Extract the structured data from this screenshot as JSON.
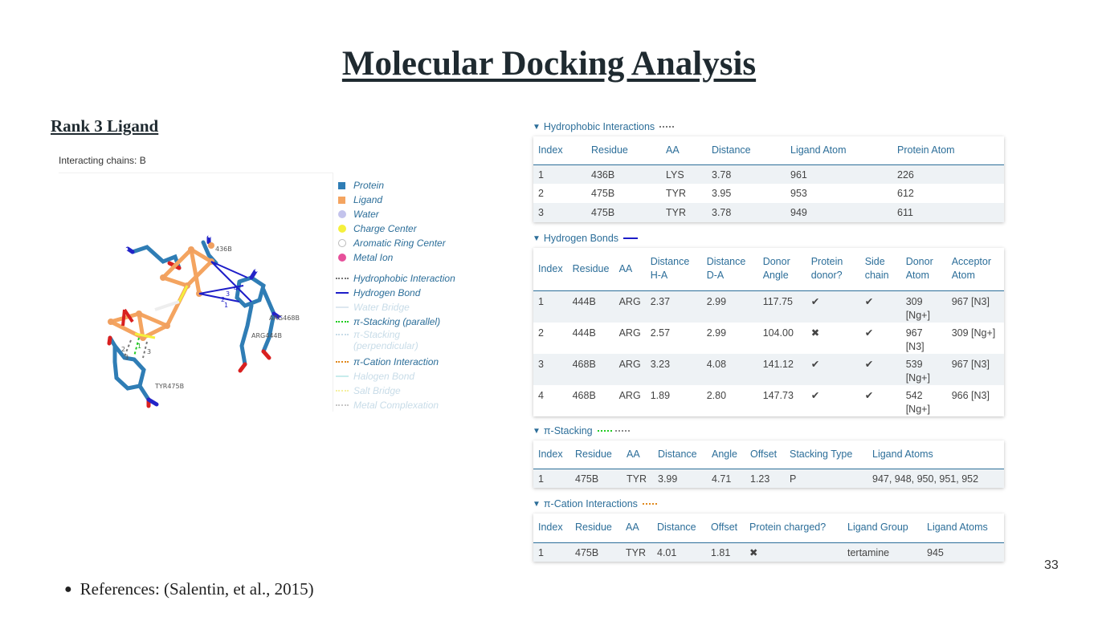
{
  "slide": {
    "title": "Molecular Docking Analysis",
    "rank_title": "Rank 3 Ligand",
    "chains_label": "Interacting chains: B",
    "page_number": "33",
    "references": "References: (Salentin, et al., 2015)"
  },
  "viewer": {
    "labels": [
      "436B",
      "ARG468B",
      "ARG444B",
      "TYR475B",
      "4",
      "3",
      "2",
      "1",
      "2",
      "3",
      "1",
      "3"
    ]
  },
  "legend": {
    "protein": "Protein",
    "ligand": "Ligand",
    "water": "Water",
    "charge_center": "Charge Center",
    "aromatic_ring_center": "Aromatic Ring Center",
    "metal_ion": "Metal Ion",
    "hydrophobic": "Hydrophobic Interaction",
    "hydrogen_bond": "Hydrogen Bond",
    "water_bridge": "Water Bridge",
    "pi_stacking_parallel": "π-Stacking (parallel)",
    "pi_stacking_perp_1": "π-Stacking",
    "pi_stacking_perp_2": "(perpendicular)",
    "pi_cation": "π-Cation Interaction",
    "halogen_bond": "Halogen Bond",
    "salt_bridge": "Salt Bridge",
    "metal_complexation": "Metal Complexation",
    "colors": {
      "protein": "#2f7db5",
      "ligand": "#f4a460",
      "water": "#c3c3ec",
      "charge_center": "#f5f03c",
      "metal_ion": "#e6509a",
      "hydrophobic": "#777777",
      "hydrogen_bond": "#1d1dc8",
      "pi_parallel": "#22cc22",
      "pi_cation": "#e0891e"
    }
  },
  "hydrophobic": {
    "title": "Hydrophobic Interactions",
    "headers": [
      "Index",
      "Residue",
      "AA",
      "Distance",
      "Ligand Atom",
      "Protein Atom"
    ],
    "rows": [
      [
        "1",
        "436B",
        "LYS",
        "3.78",
        "961",
        "226"
      ],
      [
        "2",
        "475B",
        "TYR",
        "3.95",
        "953",
        "612"
      ],
      [
        "3",
        "475B",
        "TYR",
        "3.78",
        "949",
        "611"
      ]
    ]
  },
  "hbonds": {
    "title": "Hydrogen Bonds",
    "headers": [
      [
        "Index",
        ""
      ],
      [
        "Residue",
        ""
      ],
      [
        "AA",
        ""
      ],
      [
        "Distance",
        "H-A"
      ],
      [
        "Distance",
        "D-A"
      ],
      [
        "Donor",
        "Angle"
      ],
      [
        "Protein",
        "donor?"
      ],
      [
        "Side",
        "chain"
      ],
      [
        "Donor",
        "Atom"
      ],
      [
        "Acceptor",
        "Atom"
      ]
    ],
    "rows": [
      [
        "1",
        "444B",
        "ARG",
        "2.37",
        "2.99",
        "117.75",
        "✔",
        "✔",
        "309 [Ng+]",
        "967 [N3]"
      ],
      [
        "2",
        "444B",
        "ARG",
        "2.57",
        "2.99",
        "104.00",
        "✖",
        "✔",
        "967 [N3]",
        "309 [Ng+]"
      ],
      [
        "3",
        "468B",
        "ARG",
        "3.23",
        "4.08",
        "141.12",
        "✔",
        "✔",
        "539 [Ng+]",
        "967 [N3]"
      ],
      [
        "4",
        "468B",
        "ARG",
        "1.89",
        "2.80",
        "147.73",
        "✔",
        "✔",
        "542 [Ng+]",
        "966 [N3]"
      ]
    ]
  },
  "pistacking": {
    "title": "π-Stacking",
    "headers": [
      "Index",
      "Residue",
      "AA",
      "Distance",
      "Angle",
      "Offset",
      "Stacking Type",
      "Ligand Atoms"
    ],
    "rows": [
      [
        "1",
        "475B",
        "TYR",
        "3.99",
        "4.71",
        "1.23",
        "P",
        "947, 948, 950, 951, 952"
      ]
    ]
  },
  "pication": {
    "title": "π-Cation Interactions",
    "headers": [
      "Index",
      "Residue",
      "AA",
      "Distance",
      "Offset",
      "Protein charged?",
      "Ligand Group",
      "Ligand Atoms"
    ],
    "rows": [
      [
        "1",
        "475B",
        "TYR",
        "4.01",
        "1.81",
        "✖",
        "tertamine",
        "945"
      ]
    ]
  }
}
